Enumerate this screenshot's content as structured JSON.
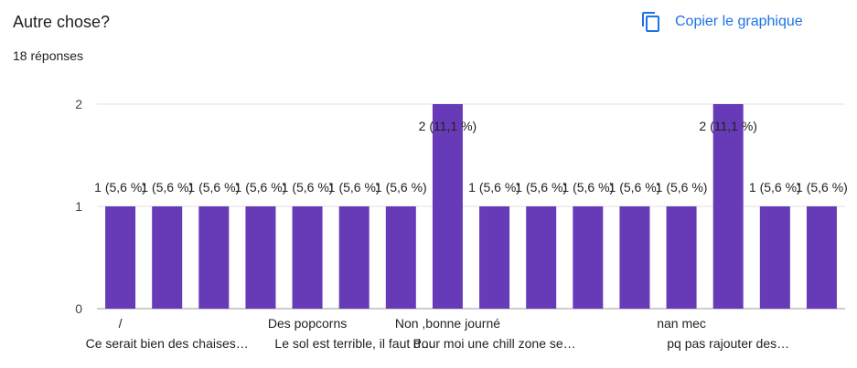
{
  "question": {
    "title": "Autre chose?",
    "responses": "18 réponses"
  },
  "toolbar": {
    "copy_label": "Copier le graphique",
    "copy_icon": "copy-icon"
  },
  "colors": {
    "bar": "#673ab7",
    "accent": "#1a73e8",
    "grid": "#e0e0e0"
  },
  "chart_data": {
    "type": "bar",
    "categories": [
      "/",
      "Ce serait bien des chaises…",
      "",
      "",
      "Des popcorns",
      "Le sol est terrible, il faut d…",
      "",
      "Non ,bonne journé",
      "Pour moi une chill zone se…",
      "",
      "",
      "",
      "nan mec",
      "pq pas rajouter des…",
      "",
      ""
    ],
    "values": [
      1,
      1,
      1,
      1,
      1,
      1,
      1,
      2,
      1,
      1,
      1,
      1,
      1,
      2,
      1,
      1
    ],
    "data_labels": [
      "1 (5,6 %)",
      "1 (5,6 %)",
      "1 (5,6 %)",
      "1 (5,6 %)",
      "1 (5,6 %)",
      "1 (5,6 %)",
      "1 (5,6 %)",
      "2 (11,1 %)",
      "1 (5,6 %)",
      "1 (5,6 %)",
      "1 (5,6 %)",
      "1 (5,6 %)",
      "1 (5,6 %)",
      "2 (11,1 %)",
      "1 (5,6 %)",
      "1 (5,6 %)"
    ],
    "y_ticks": [
      "0",
      "1",
      "2"
    ],
    "ylim": [
      0,
      2
    ],
    "grid": true,
    "xlabel": "",
    "ylabel": ""
  }
}
